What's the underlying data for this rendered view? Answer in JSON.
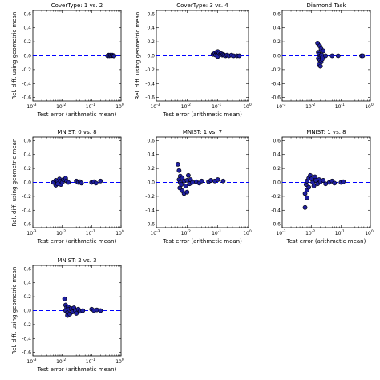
{
  "chart_data": [
    {
      "type": "scatter",
      "title": "CoverType: 1 vs. 2",
      "xlabel": "Test error (arithmetic mean)",
      "ylabel": "Rel. diff. using geometric mean",
      "xscale": "log",
      "xlim": [
        0.001,
        1
      ],
      "ylim": [
        -0.65,
        0.65
      ],
      "xticks": [
        "10",
        "10",
        "10",
        "10"
      ],
      "xtick_exponents": [
        "-3",
        "-2",
        "-1",
        "0"
      ],
      "yticks": [
        "0.6",
        "0.4",
        "0.2",
        "0.0",
        "-0.2",
        "-0.4",
        "-0.6"
      ],
      "reference_line": 0,
      "marker_color": "#1f1fa0",
      "points": [
        [
          0.35,
          0.0
        ],
        [
          0.38,
          0.01
        ],
        [
          0.4,
          0.0
        ],
        [
          0.43,
          0.01
        ],
        [
          0.46,
          0.0
        ],
        [
          0.5,
          0.01
        ],
        [
          0.55,
          0.0
        ],
        [
          0.58,
          0.0
        ]
      ]
    },
    {
      "type": "scatter",
      "title": "CoverType: 3 vs. 4",
      "xlabel": "Test error (arithmetic mean)",
      "ylabel": "Rel. diff. using geometric mean",
      "xscale": "log",
      "xlim": [
        0.001,
        1
      ],
      "ylim": [
        -0.65,
        0.65
      ],
      "xticks": [
        "10",
        "10",
        "10",
        "10"
      ],
      "xtick_exponents": [
        "-3",
        "-2",
        "-1",
        "0"
      ],
      "yticks": [
        "0.6",
        "0.4",
        "0.2",
        "0.0",
        "-0.2",
        "-0.4",
        "-0.6"
      ],
      "reference_line": 0,
      "marker_color": "#1f1fa0",
      "points": [
        [
          0.07,
          0.02
        ],
        [
          0.08,
          0.04
        ],
        [
          0.085,
          0.01
        ],
        [
          0.09,
          0.05
        ],
        [
          0.095,
          0.03
        ],
        [
          0.1,
          0.06
        ],
        [
          0.1,
          -0.01
        ],
        [
          0.11,
          0.04
        ],
        [
          0.12,
          0.02
        ],
        [
          0.13,
          0.03
        ],
        [
          0.14,
          0.01
        ],
        [
          0.15,
          0.02
        ],
        [
          0.16,
          0.01
        ],
        [
          0.18,
          0.0
        ],
        [
          0.2,
          0.01
        ],
        [
          0.23,
          0.0
        ],
        [
          0.28,
          0.01
        ],
        [
          0.33,
          0.0
        ],
        [
          0.42,
          0.0
        ],
        [
          0.5,
          0.0
        ]
      ]
    },
    {
      "type": "scatter",
      "title": "Diamond Task",
      "xlabel": "",
      "ylabel": "",
      "xscale": "log",
      "xlim": [
        0.001,
        1
      ],
      "ylim": [
        -0.65,
        0.65
      ],
      "xticks": [
        "10",
        "10",
        "10",
        "10"
      ],
      "xtick_exponents": [
        "-3",
        "-2",
        "-1",
        "0"
      ],
      "yticks": [
        "0.6",
        "0.4",
        "0.2",
        "0.0",
        "-0.2",
        "-0.4",
        "-0.6"
      ],
      "reference_line": 0,
      "marker_color": "#1f1fa0",
      "points": [
        [
          0.016,
          0.18
        ],
        [
          0.019,
          0.14
        ],
        [
          0.021,
          0.1
        ],
        [
          0.017,
          0.05
        ],
        [
          0.018,
          0.02
        ],
        [
          0.02,
          0.0
        ],
        [
          0.022,
          0.01
        ],
        [
          0.017,
          -0.04
        ],
        [
          0.019,
          -0.06
        ],
        [
          0.021,
          -0.09
        ],
        [
          0.018,
          -0.12
        ],
        [
          0.02,
          -0.15
        ],
        [
          0.023,
          -0.05
        ],
        [
          0.025,
          0.07
        ],
        [
          0.024,
          -0.02
        ],
        [
          0.03,
          0.0
        ],
        [
          0.05,
          0.0
        ],
        [
          0.08,
          0.0
        ],
        [
          0.5,
          0.0
        ],
        [
          0.55,
          0.0
        ]
      ]
    },
    {
      "type": "scatter",
      "title": "MNIST: 0 vs. 8",
      "xlabel": "Test error (arithmetic mean)",
      "ylabel": "Rel. diff. using geometric mean",
      "xscale": "log",
      "xlim": [
        0.001,
        1
      ],
      "ylim": [
        -0.65,
        0.65
      ],
      "xticks": [
        "10",
        "10",
        "10",
        "10"
      ],
      "xtick_exponents": [
        "-3",
        "-2",
        "-1",
        "0"
      ],
      "yticks": [
        "0.6",
        "0.4",
        "0.2",
        "0.0",
        "-0.2",
        "-0.4",
        "-0.6"
      ],
      "reference_line": 0,
      "marker_color": "#1f1fa0",
      "points": [
        [
          0.005,
          0.0
        ],
        [
          0.006,
          0.03
        ],
        [
          0.006,
          -0.04
        ],
        [
          0.007,
          0.01
        ],
        [
          0.007,
          -0.02
        ],
        [
          0.008,
          0.05
        ],
        [
          0.009,
          0.02
        ],
        [
          0.009,
          -0.03
        ],
        [
          0.01,
          0.0
        ],
        [
          0.011,
          0.04
        ],
        [
          0.013,
          0.06
        ],
        [
          0.014,
          0.02
        ],
        [
          0.016,
          0.0
        ],
        [
          0.03,
          0.02
        ],
        [
          0.035,
          0.0
        ],
        [
          0.04,
          0.01
        ],
        [
          0.045,
          -0.01
        ],
        [
          0.1,
          0.0
        ],
        [
          0.12,
          0.01
        ],
        [
          0.14,
          -0.01
        ],
        [
          0.2,
          0.02
        ]
      ]
    },
    {
      "type": "scatter",
      "title": "MNIST: 1 vs. 7",
      "xlabel": "Test error (arithmetic mean)",
      "ylabel": "",
      "xscale": "log",
      "xlim": [
        0.001,
        1
      ],
      "ylim": [
        -0.65,
        0.65
      ],
      "xticks": [
        "10",
        "10",
        "10",
        "10"
      ],
      "xtick_exponents": [
        "-3",
        "-2",
        "-1",
        "0"
      ],
      "yticks": [
        "0.6",
        "0.4",
        "0.2",
        "0.0",
        "-0.2",
        "-0.4",
        "-0.6"
      ],
      "reference_line": 0,
      "marker_color": "#1f1fa0",
      "points": [
        [
          0.005,
          0.26
        ],
        [
          0.0055,
          0.17
        ],
        [
          0.006,
          0.09
        ],
        [
          0.0055,
          0.04
        ],
        [
          0.006,
          0.0
        ],
        [
          0.0065,
          -0.03
        ],
        [
          0.0058,
          -0.08
        ],
        [
          0.007,
          -0.12
        ],
        [
          0.008,
          -0.16
        ],
        [
          0.01,
          -0.14
        ],
        [
          0.007,
          0.06
        ],
        [
          0.008,
          0.02
        ],
        [
          0.009,
          -0.05
        ],
        [
          0.01,
          0.03
        ],
        [
          0.011,
          0.1
        ],
        [
          0.012,
          -0.02
        ],
        [
          0.013,
          0.04
        ],
        [
          0.015,
          0.0
        ],
        [
          0.02,
          0.01
        ],
        [
          0.025,
          -0.01
        ],
        [
          0.03,
          0.02
        ],
        [
          0.05,
          0.01
        ],
        [
          0.06,
          0.03
        ],
        [
          0.08,
          0.02
        ],
        [
          0.1,
          0.04
        ],
        [
          0.15,
          0.02
        ]
      ]
    },
    {
      "type": "scatter",
      "title": "MNIST: 1 vs. 8",
      "xlabel": "Test error (arithmetic mean)",
      "ylabel": "",
      "xscale": "log",
      "xlim": [
        0.001,
        1
      ],
      "ylim": [
        -0.65,
        0.65
      ],
      "xticks": [
        "10",
        "10",
        "10",
        "10"
      ],
      "xtick_exponents": [
        "-3",
        "-2",
        "-1",
        "0"
      ],
      "yticks": [
        "0.6",
        "0.4",
        "0.2",
        "0.0",
        "-0.2",
        "-0.4",
        "-0.6"
      ],
      "reference_line": 0,
      "marker_color": "#1f1fa0",
      "points": [
        [
          0.006,
          -0.36
        ],
        [
          0.007,
          -0.22
        ],
        [
          0.006,
          -0.16
        ],
        [
          0.007,
          -0.11
        ],
        [
          0.008,
          -0.07
        ],
        [
          0.0065,
          -0.03
        ],
        [
          0.007,
          0.02
        ],
        [
          0.008,
          0.06
        ],
        [
          0.009,
          0.1
        ],
        [
          0.01,
          0.05
        ],
        [
          0.011,
          0.0
        ],
        [
          0.012,
          -0.05
        ],
        [
          0.013,
          0.08
        ],
        [
          0.014,
          0.03
        ],
        [
          0.016,
          -0.02
        ],
        [
          0.018,
          0.04
        ],
        [
          0.02,
          0.01
        ],
        [
          0.025,
          0.03
        ],
        [
          0.03,
          -0.02
        ],
        [
          0.04,
          0.0
        ],
        [
          0.05,
          0.02
        ],
        [
          0.06,
          -0.01
        ],
        [
          0.1,
          0.0
        ],
        [
          0.12,
          0.01
        ]
      ]
    },
    {
      "type": "scatter",
      "title": "MNIST: 2 vs. 3",
      "xlabel": "Test error (arithmetic mean)",
      "ylabel": "Rel. diff. using geometric mean",
      "xscale": "log",
      "xlim": [
        0.001,
        1
      ],
      "ylim": [
        -0.65,
        0.65
      ],
      "xticks": [
        "10",
        "10",
        "10",
        "10"
      ],
      "xtick_exponents": [
        "-3",
        "-2",
        "-1",
        "0"
      ],
      "yticks": [
        "0.6",
        "0.4",
        "0.2",
        "0.0",
        "-0.2",
        "-0.4",
        "-0.6"
      ],
      "reference_line": 0,
      "marker_color": "#1f1fa0",
      "points": [
        [
          0.012,
          0.17
        ],
        [
          0.013,
          0.08
        ],
        [
          0.014,
          0.04
        ],
        [
          0.013,
          0.0
        ],
        [
          0.015,
          -0.03
        ],
        [
          0.016,
          0.05
        ],
        [
          0.017,
          0.02
        ],
        [
          0.015,
          -0.07
        ],
        [
          0.018,
          -0.05
        ],
        [
          0.02,
          0.03
        ],
        [
          0.022,
          -0.02
        ],
        [
          0.025,
          0.04
        ],
        [
          0.028,
          0.0
        ],
        [
          0.03,
          -0.04
        ],
        [
          0.035,
          0.02
        ],
        [
          0.04,
          -0.01
        ],
        [
          0.05,
          0.0
        ],
        [
          0.1,
          0.02
        ],
        [
          0.12,
          0.0
        ],
        [
          0.15,
          0.01
        ],
        [
          0.2,
          0.0
        ]
      ]
    }
  ]
}
